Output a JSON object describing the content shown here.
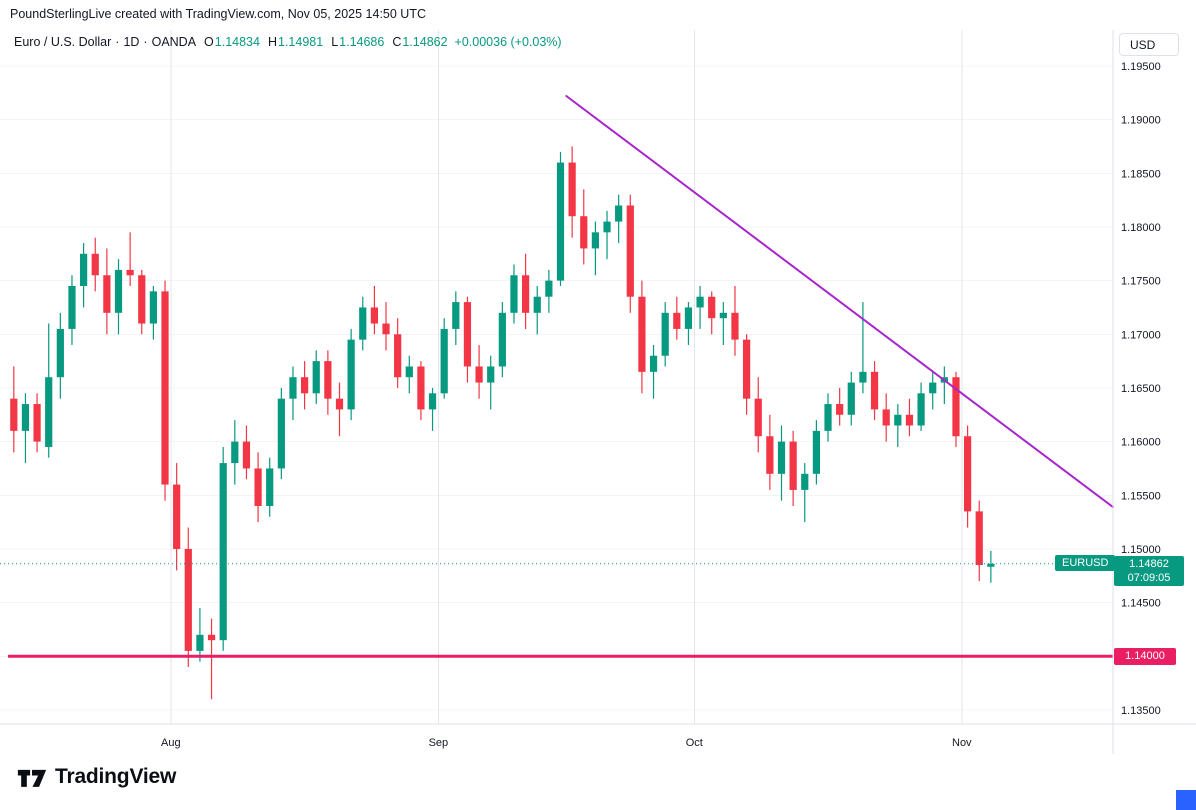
{
  "header": {
    "attribution": "PoundSterlingLive created with TradingView.com, Nov 05, 2025 14:50 UTC"
  },
  "legend": {
    "symbol": "Euro / U.S. Dollar",
    "separator": "·",
    "interval": "1D",
    "exchange": "OANDA",
    "open_label": "O",
    "open": "1.14834",
    "high_label": "H",
    "high": "1.14981",
    "low_label": "L",
    "low": "1.14686",
    "close_label": "C",
    "close": "1.14862",
    "change": "+0.00036 (+0.03%)"
  },
  "price_axis": {
    "currency_label": "USD",
    "ticks": [
      "1.19500",
      "1.19000",
      "1.18500",
      "1.18000",
      "1.17500",
      "1.17000",
      "1.16500",
      "1.16000",
      "1.15500",
      "1.15000",
      "1.14500",
      "1.14000",
      "1.13500"
    ],
    "current_price_label": "1.14862",
    "countdown": "07:09:05",
    "symbol_tag": "EURUSD",
    "level_label": "1.14000"
  },
  "time_axis": {
    "months": [
      {
        "label": "Aug",
        "index": 14
      },
      {
        "label": "Sep",
        "index": 37
      },
      {
        "label": "Oct",
        "index": 59
      },
      {
        "label": "Nov",
        "index": 82
      }
    ]
  },
  "footer": {
    "logo_text": "TradingView"
  },
  "colors": {
    "up": "#089981",
    "down": "#f23645",
    "trendline": "#aa24cc",
    "level_line": "#e91e63",
    "accent_blue": "#2962ff",
    "grid_h": "#f2f4f8",
    "grid_v": "#e3e6ed",
    "axis_text": "#131722",
    "border": "#dde1ea"
  },
  "chart_data": {
    "type": "candlestick",
    "symbol": "EURUSD",
    "title": "Euro / U.S. Dollar · 1D · OANDA",
    "interval": "1D",
    "y_min": 1.13369,
    "y_max": 1.19835,
    "grid_ticks": [
      1.195,
      1.19,
      1.185,
      1.18,
      1.175,
      1.17,
      1.165,
      1.16,
      1.155,
      1.15,
      1.145,
      1.14,
      1.135
    ],
    "right_margin_slots": 10,
    "current_price": 1.14862,
    "current_ohlc": {
      "o": 1.14834,
      "h": 1.14981,
      "l": 1.14686,
      "c": 1.14862,
      "change": 0.00036,
      "change_pct": 0.03
    },
    "horizontal_line": {
      "price": 1.14,
      "label": "1.14000"
    },
    "trendline": {
      "start_index": 47.5,
      "start_price": 1.1922,
      "end_index": 94.5,
      "end_price": 1.1539
    },
    "candles": [
      [
        1.164,
        1.167,
        1.159,
        1.161
      ],
      [
        1.161,
        1.1645,
        1.158,
        1.1635
      ],
      [
        1.1635,
        1.1645,
        1.159,
        1.16
      ],
      [
        1.1595,
        1.171,
        1.1585,
        1.166
      ],
      [
        1.166,
        1.172,
        1.164,
        1.1705
      ],
      [
        1.1705,
        1.1755,
        1.169,
        1.1745
      ],
      [
        1.1745,
        1.1785,
        1.1725,
        1.1775
      ],
      [
        1.1775,
        1.179,
        1.174,
        1.1755
      ],
      [
        1.1755,
        1.178,
        1.17,
        1.172
      ],
      [
        1.172,
        1.177,
        1.17,
        1.176
      ],
      [
        1.176,
        1.1795,
        1.1745,
        1.1755
      ],
      [
        1.1755,
        1.176,
        1.17,
        1.171
      ],
      [
        1.171,
        1.1745,
        1.1695,
        1.174
      ],
      [
        1.174,
        1.175,
        1.1545,
        1.156
      ],
      [
        1.156,
        1.158,
        1.148,
        1.15
      ],
      [
        1.15,
        1.152,
        1.139,
        1.1405
      ],
      [
        1.1405,
        1.1445,
        1.1395,
        1.142
      ],
      [
        1.142,
        1.1435,
        1.136,
        1.1415
      ],
      [
        1.1415,
        1.1595,
        1.1405,
        1.158
      ],
      [
        1.158,
        1.162,
        1.156,
        1.16
      ],
      [
        1.16,
        1.1615,
        1.1565,
        1.1575
      ],
      [
        1.1575,
        1.159,
        1.1525,
        1.154
      ],
      [
        1.154,
        1.1585,
        1.153,
        1.1575
      ],
      [
        1.1575,
        1.165,
        1.1565,
        1.164
      ],
      [
        1.164,
        1.167,
        1.162,
        1.166
      ],
      [
        1.166,
        1.1675,
        1.163,
        1.1645
      ],
      [
        1.1645,
        1.1685,
        1.1635,
        1.1675
      ],
      [
        1.1675,
        1.1685,
        1.1625,
        1.164
      ],
      [
        1.164,
        1.1655,
        1.1605,
        1.163
      ],
      [
        1.163,
        1.1705,
        1.162,
        1.1695
      ],
      [
        1.1695,
        1.1735,
        1.1685,
        1.1725
      ],
      [
        1.1725,
        1.1745,
        1.17,
        1.171
      ],
      [
        1.171,
        1.173,
        1.1685,
        1.17
      ],
      [
        1.17,
        1.1715,
        1.165,
        1.166
      ],
      [
        1.166,
        1.168,
        1.1645,
        1.167
      ],
      [
        1.167,
        1.1675,
        1.162,
        1.163
      ],
      [
        1.163,
        1.165,
        1.161,
        1.1645
      ],
      [
        1.1645,
        1.1715,
        1.164,
        1.1705
      ],
      [
        1.1705,
        1.174,
        1.169,
        1.173
      ],
      [
        1.173,
        1.1735,
        1.1655,
        1.167
      ],
      [
        1.167,
        1.169,
        1.164,
        1.1655
      ],
      [
        1.1655,
        1.168,
        1.163,
        1.167
      ],
      [
        1.167,
        1.173,
        1.166,
        1.172
      ],
      [
        1.172,
        1.1765,
        1.171,
        1.1755
      ],
      [
        1.1755,
        1.1775,
        1.1705,
        1.172
      ],
      [
        1.172,
        1.1745,
        1.17,
        1.1735
      ],
      [
        1.1735,
        1.176,
        1.172,
        1.175
      ],
      [
        1.175,
        1.187,
        1.1745,
        1.186
      ],
      [
        1.186,
        1.1875,
        1.179,
        1.181
      ],
      [
        1.181,
        1.1835,
        1.1765,
        1.178
      ],
      [
        1.178,
        1.1805,
        1.1755,
        1.1795
      ],
      [
        1.1795,
        1.1815,
        1.177,
        1.1805
      ],
      [
        1.1805,
        1.183,
        1.1785,
        1.182
      ],
      [
        1.182,
        1.183,
        1.172,
        1.1735
      ],
      [
        1.1735,
        1.175,
        1.1645,
        1.1665
      ],
      [
        1.1665,
        1.169,
        1.164,
        1.168
      ],
      [
        1.168,
        1.173,
        1.167,
        1.172
      ],
      [
        1.172,
        1.1735,
        1.1695,
        1.1705
      ],
      [
        1.1705,
        1.173,
        1.169,
        1.1725
      ],
      [
        1.1725,
        1.1745,
        1.1705,
        1.1735
      ],
      [
        1.1735,
        1.174,
        1.17,
        1.1715
      ],
      [
        1.1715,
        1.173,
        1.169,
        1.172
      ],
      [
        1.172,
        1.1745,
        1.168,
        1.1695
      ],
      [
        1.1695,
        1.17,
        1.1625,
        1.164
      ],
      [
        1.164,
        1.166,
        1.159,
        1.1605
      ],
      [
        1.1605,
        1.1625,
        1.1555,
        1.157
      ],
      [
        1.157,
        1.1615,
        1.1545,
        1.16
      ],
      [
        1.16,
        1.161,
        1.154,
        1.1555
      ],
      [
        1.1555,
        1.158,
        1.1525,
        1.157
      ],
      [
        1.157,
        1.162,
        1.156,
        1.161
      ],
      [
        1.161,
        1.1645,
        1.16,
        1.1635
      ],
      [
        1.1635,
        1.165,
        1.1615,
        1.1625
      ],
      [
        1.1625,
        1.1665,
        1.1615,
        1.1655
      ],
      [
        1.1655,
        1.173,
        1.1645,
        1.1665
      ],
      [
        1.1665,
        1.1675,
        1.162,
        1.163
      ],
      [
        1.163,
        1.1645,
        1.16,
        1.1615
      ],
      [
        1.1615,
        1.1635,
        1.1595,
        1.1625
      ],
      [
        1.1625,
        1.164,
        1.1605,
        1.1615
      ],
      [
        1.1615,
        1.1655,
        1.161,
        1.1645
      ],
      [
        1.1645,
        1.1665,
        1.163,
        1.1655
      ],
      [
        1.1655,
        1.167,
        1.1635,
        1.166
      ],
      [
        1.166,
        1.1665,
        1.1595,
        1.1605
      ],
      [
        1.1605,
        1.1615,
        1.152,
        1.1535
      ],
      [
        1.1535,
        1.1545,
        1.147,
        1.1485
      ],
      [
        1.14834,
        1.14981,
        1.14686,
        1.14862
      ]
    ]
  }
}
